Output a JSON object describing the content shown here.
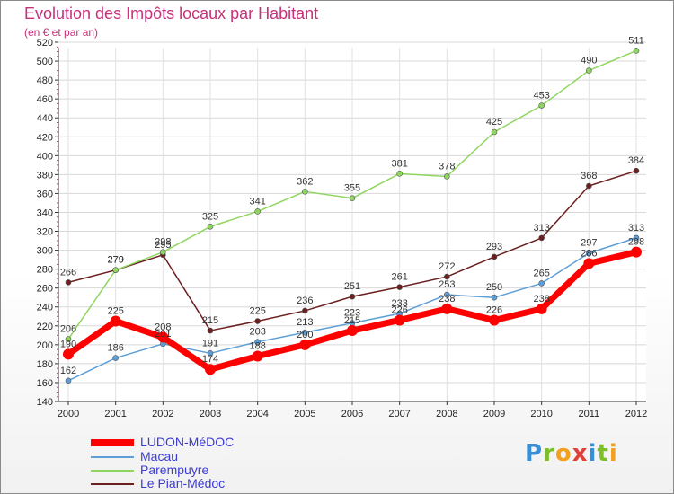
{
  "chart_data": {
    "type": "line",
    "title": "Evolution des Impôts locaux par Habitant",
    "subtitle": "(en € et par an)",
    "x": [
      "2000",
      "2001",
      "2002",
      "2003",
      "2004",
      "2005",
      "2006",
      "2007",
      "2008",
      "2009",
      "2010",
      "2011",
      "2012"
    ],
    "ylim": [
      140,
      520
    ],
    "yticks": [
      140,
      160,
      180,
      200,
      220,
      240,
      260,
      280,
      300,
      320,
      340,
      360,
      380,
      400,
      420,
      440,
      460,
      480,
      500,
      520
    ],
    "grid": true,
    "legend_position": "bottom-left",
    "series": [
      {
        "name": "LUDON-MéDOC",
        "color": "#ff0000",
        "values": [
          190,
          225,
          208,
          174,
          188,
          200,
          215,
          226,
          238,
          226,
          238,
          286,
          298
        ]
      },
      {
        "name": "Macau",
        "color": "#5d9ed6",
        "values": [
          162,
          186,
          201,
          191,
          203,
          213,
          223,
          233,
          253,
          250,
          265,
          297,
          313
        ]
      },
      {
        "name": "Parempuyre",
        "color": "#8fd65f",
        "values": [
          206,
          279,
          298,
          325,
          341,
          362,
          355,
          381,
          378,
          425,
          453,
          490,
          511
        ]
      },
      {
        "name": "Le Pian-Médoc",
        "color": "#6b1f1f",
        "values": [
          266,
          279,
          295,
          215,
          225,
          236,
          251,
          261,
          272,
          293,
          313,
          368,
          384
        ]
      }
    ]
  },
  "logo": {
    "letters": [
      "P",
      "r",
      "o",
      "x",
      "i",
      "t",
      "i"
    ]
  }
}
